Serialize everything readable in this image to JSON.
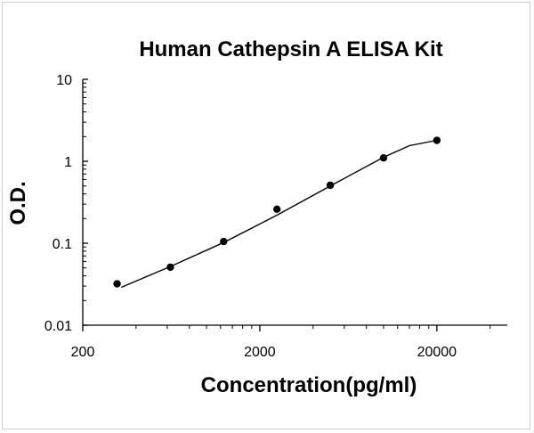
{
  "chart_data": {
    "type": "scatter",
    "title": "Human Cathepsin A ELISA Kit",
    "xlabel": "Concentration(pg/ml)",
    "ylabel": "O.D.",
    "x_scale": "log",
    "y_scale": "log",
    "xlim": [
      200,
      50000
    ],
    "ylim": [
      0.01,
      10
    ],
    "x_ticks": [
      "200",
      "2000",
      "20000"
    ],
    "y_ticks": [
      "0.01",
      "0.1",
      "1",
      "10"
    ],
    "grid": false,
    "legend": "none",
    "series": [
      {
        "points": [
          {
            "x": 312.5,
            "y": 0.032
          },
          {
            "x": 625,
            "y": 0.051
          },
          {
            "x": 1250,
            "y": 0.105
          },
          {
            "x": 2500,
            "y": 0.26
          },
          {
            "x": 5000,
            "y": 0.51
          },
          {
            "x": 10000,
            "y": 1.1
          },
          {
            "x": 20000,
            "y": 1.8
          }
        ],
        "fit_curve": [
          {
            "x": 330,
            "y": 0.029
          },
          {
            "x": 625,
            "y": 0.052
          },
          {
            "x": 1250,
            "y": 0.102
          },
          {
            "x": 2500,
            "y": 0.22
          },
          {
            "x": 5000,
            "y": 0.5
          },
          {
            "x": 10000,
            "y": 1.12
          },
          {
            "x": 14000,
            "y": 1.55
          },
          {
            "x": 20000,
            "y": 1.8
          }
        ],
        "marker_color": "#000000",
        "line_color": "#000000"
      }
    ]
  }
}
